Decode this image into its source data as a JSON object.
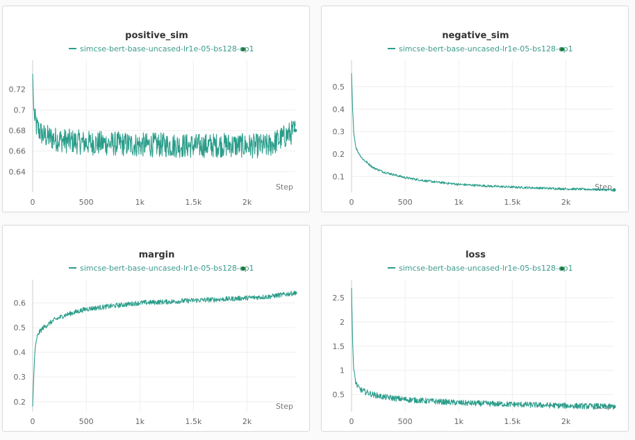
{
  "colors": {
    "series": "#2a9d8a",
    "end_dot": "#1f7a3a",
    "grid": "#eeeeee"
  },
  "chart_data": [
    {
      "type": "line",
      "title": "positive_sim",
      "xlabel": "Step",
      "legend": "simcse-bert-base-uncased-lr1e-05-bs128-ep1",
      "xlim": [
        0,
        2450
      ],
      "ylim": [
        0.62,
        0.74
      ],
      "xticks": [
        0,
        500,
        1000,
        1500,
        2000
      ],
      "xtick_labels": [
        "0",
        "500",
        "1k",
        "1.5k",
        "2k"
      ],
      "yticks": [
        0.64,
        0.66,
        0.68,
        0.7,
        0.72
      ],
      "ytick_labels": [
        "0.64",
        "0.66",
        "0.68",
        "0.7",
        "0.72"
      ],
      "series": [
        {
          "x": [
            0,
            10,
            30,
            60,
            100,
            200,
            300,
            500,
            800,
            1000,
            1200,
            1500,
            1800,
            2000,
            2200,
            2450
          ],
          "y": [
            0.735,
            0.7,
            0.685,
            0.68,
            0.675,
            0.672,
            0.67,
            0.668,
            0.667,
            0.666,
            0.666,
            0.665,
            0.666,
            0.665,
            0.665,
            0.68
          ],
          "noise": 0.012
        }
      ]
    },
    {
      "type": "line",
      "title": "negative_sim",
      "xlabel": "Step",
      "legend": "simcse-bert-base-uncased-lr1e-05-bs128-ep1",
      "xlim": [
        0,
        2450
      ],
      "ylim": [
        0.03,
        0.58
      ],
      "xticks": [
        0,
        500,
        1000,
        1500,
        2000
      ],
      "xtick_labels": [
        "0",
        "500",
        "1k",
        "1.5k",
        "2k"
      ],
      "yticks": [
        0.1,
        0.2,
        0.3,
        0.4,
        0.5
      ],
      "ytick_labels": [
        "0.1",
        "0.2",
        "0.3",
        "0.4",
        "0.5"
      ],
      "series": [
        {
          "x": [
            0,
            10,
            20,
            40,
            60,
            100,
            200,
            300,
            500,
            700,
            1000,
            1300,
            1500,
            1800,
            2000,
            2200,
            2450
          ],
          "y": [
            0.56,
            0.4,
            0.3,
            0.23,
            0.21,
            0.18,
            0.14,
            0.12,
            0.095,
            0.08,
            0.065,
            0.057,
            0.053,
            0.048,
            0.045,
            0.043,
            0.04
          ],
          "noise": 0.005
        }
      ]
    },
    {
      "type": "line",
      "title": "margin",
      "xlabel": "Step",
      "legend": "simcse-bert-base-uncased-lr1e-05-bs128-ep1",
      "xlim": [
        0,
        2450
      ],
      "ylim": [
        0.16,
        0.66
      ],
      "xticks": [
        0,
        500,
        1000,
        1500,
        2000
      ],
      "xtick_labels": [
        "0",
        "500",
        "1k",
        "1.5k",
        "2k"
      ],
      "yticks": [
        0.2,
        0.3,
        0.4,
        0.5,
        0.6
      ],
      "ytick_labels": [
        "0.2",
        "0.3",
        "0.4",
        "0.5",
        "0.6"
      ],
      "series": [
        {
          "x": [
            0,
            10,
            20,
            40,
            60,
            100,
            200,
            300,
            500,
            700,
            1000,
            1300,
            1500,
            1800,
            2000,
            2200,
            2450
          ],
          "y": [
            0.18,
            0.3,
            0.4,
            0.46,
            0.48,
            0.5,
            0.53,
            0.55,
            0.575,
            0.585,
            0.6,
            0.605,
            0.61,
            0.615,
            0.62,
            0.625,
            0.64
          ],
          "noise": 0.01
        }
      ]
    },
    {
      "type": "line",
      "title": "loss",
      "xlabel": "Step",
      "legend": "simcse-bert-base-uncased-lr1e-05-bs128-ep1",
      "xlim": [
        0,
        2450
      ],
      "ylim": [
        0.15,
        2.7
      ],
      "xticks": [
        0,
        500,
        1000,
        1500,
        2000
      ],
      "xtick_labels": [
        "0",
        "500",
        "1k",
        "1.5k",
        "2k"
      ],
      "yticks": [
        0.5,
        1,
        1.5,
        2,
        2.5
      ],
      "ytick_labels": [
        "0.5",
        "1",
        "1.5",
        "2",
        "2.5"
      ],
      "series": [
        {
          "x": [
            0,
            10,
            20,
            40,
            60,
            100,
            200,
            300,
            500,
            700,
            1000,
            1300,
            1500,
            1800,
            2000,
            2200,
            2450
          ],
          "y": [
            2.7,
            1.6,
            1.0,
            0.75,
            0.65,
            0.58,
            0.5,
            0.45,
            0.4,
            0.37,
            0.33,
            0.31,
            0.3,
            0.28,
            0.27,
            0.26,
            0.25
          ],
          "noise": 0.06
        }
      ]
    }
  ]
}
